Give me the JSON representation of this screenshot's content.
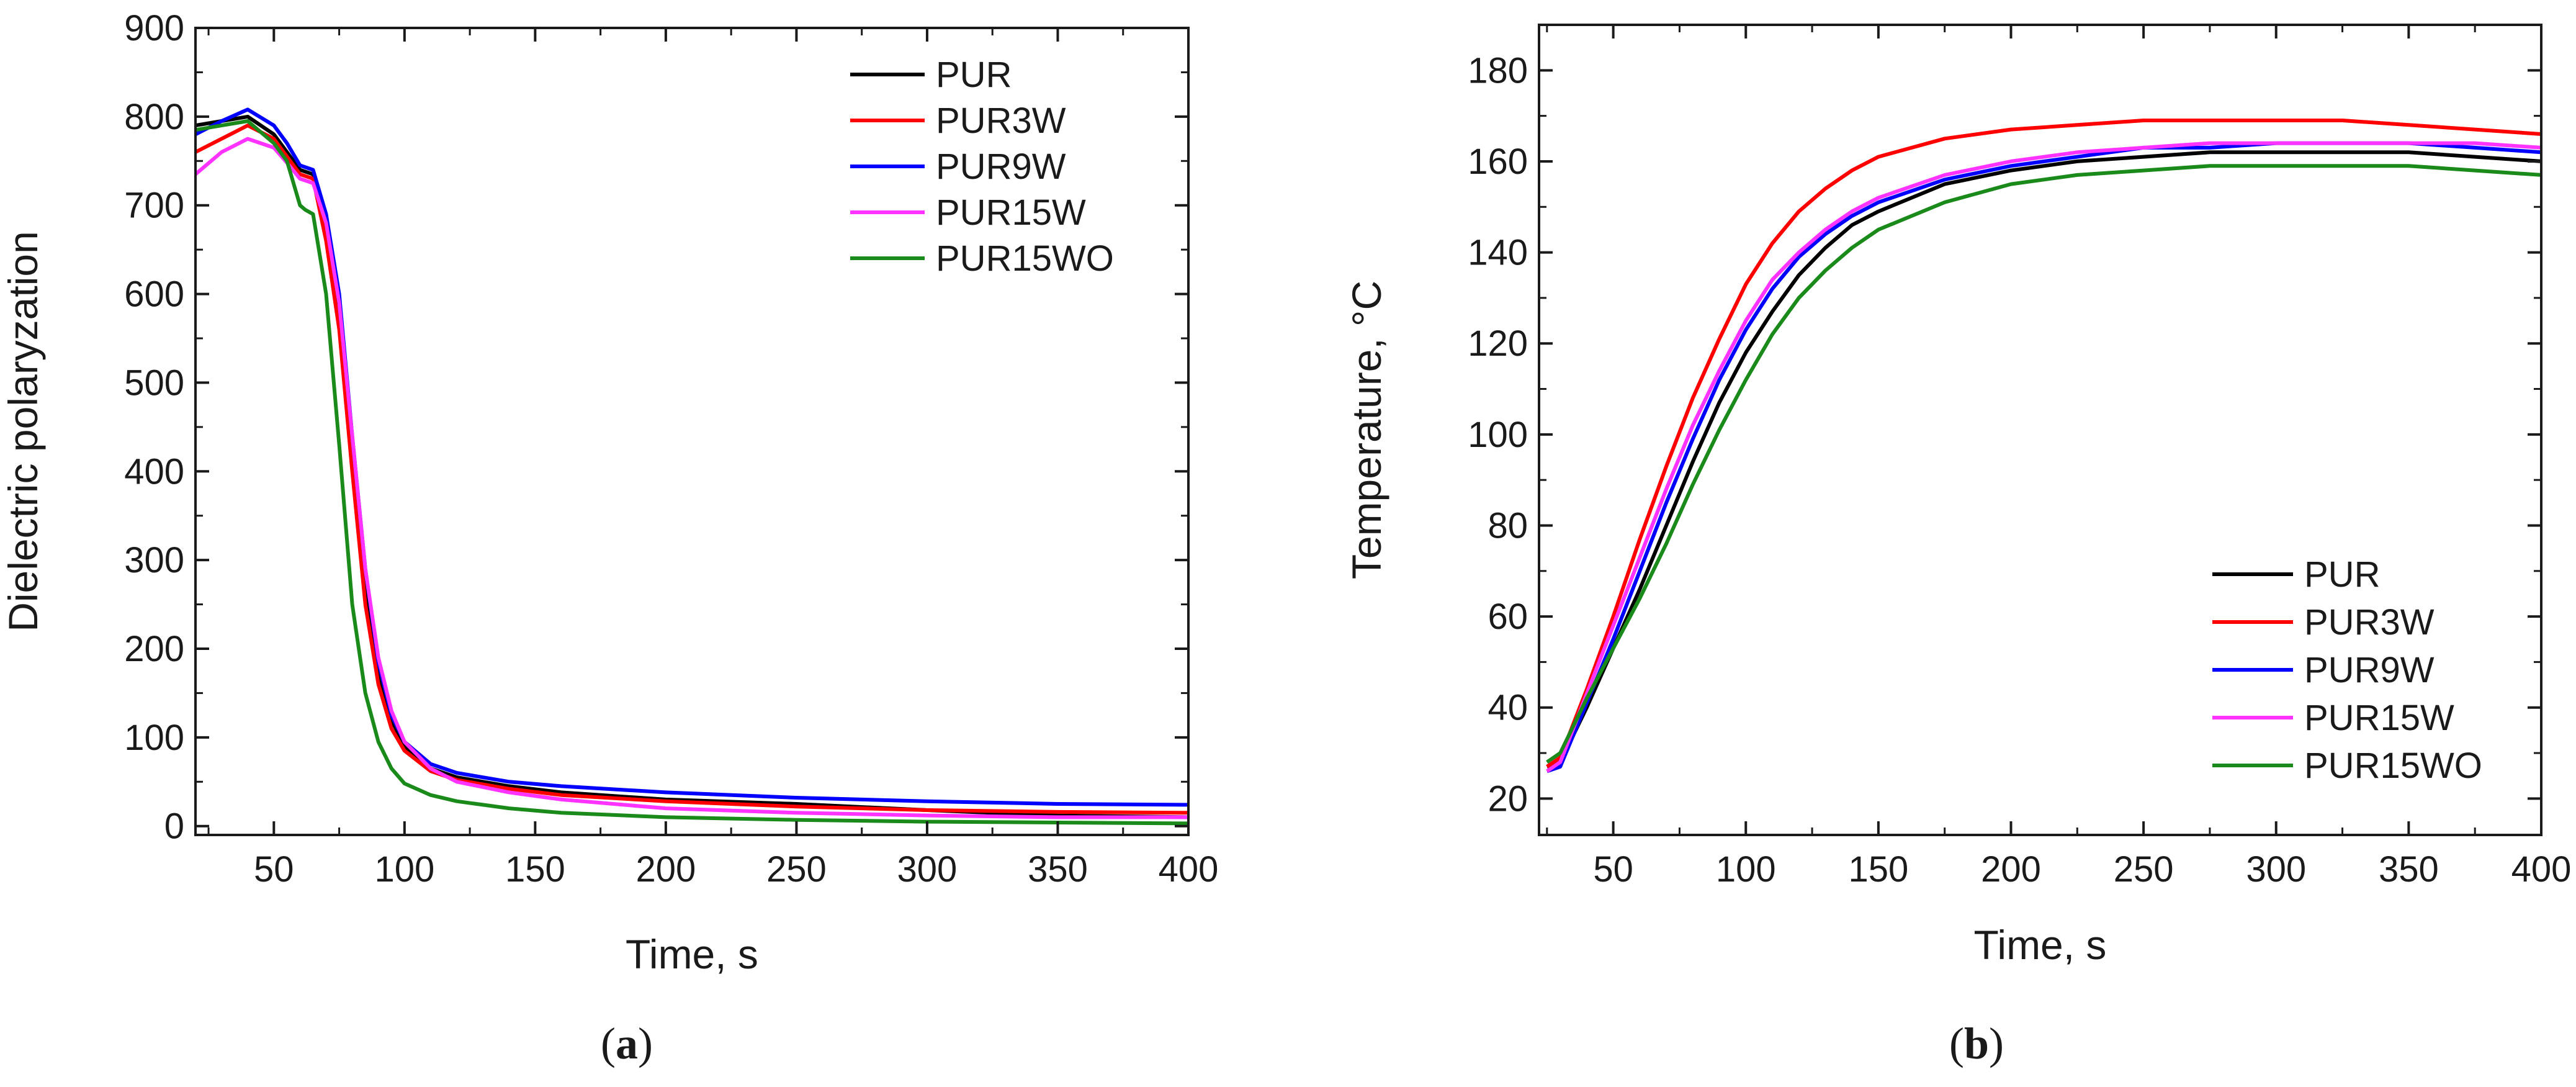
{
  "chart_data": [
    {
      "panel_label": "a",
      "type": "line",
      "title": "",
      "xlabel": "Time, s",
      "ylabel": "Dielectric polaryzation",
      "xlim": [
        20,
        400
      ],
      "ylim": [
        -10,
        900
      ],
      "xticks": [
        50,
        100,
        150,
        200,
        250,
        300,
        350,
        400
      ],
      "yticks": [
        0,
        100,
        200,
        300,
        400,
        500,
        600,
        700,
        800,
        900
      ],
      "grid": false,
      "legend_position": "top-right",
      "series": [
        {
          "name": "PUR",
          "color": "#000000",
          "x": [
            20,
            30,
            40,
            50,
            55,
            60,
            65,
            70,
            75,
            80,
            85,
            90,
            95,
            100,
            110,
            120,
            140,
            160,
            200,
            250,
            300,
            350,
            400
          ],
          "y": [
            790,
            795,
            800,
            780,
            760,
            740,
            735,
            680,
            580,
            420,
            270,
            170,
            120,
            90,
            65,
            55,
            45,
            38,
            30,
            25,
            18,
            12,
            10
          ]
        },
        {
          "name": "PUR3W",
          "color": "#ff0000",
          "x": [
            20,
            30,
            40,
            50,
            55,
            60,
            65,
            70,
            75,
            80,
            85,
            90,
            95,
            100,
            110,
            120,
            140,
            160,
            200,
            250,
            300,
            350,
            400
          ],
          "y": [
            760,
            775,
            790,
            775,
            755,
            735,
            730,
            660,
            560,
            400,
            250,
            160,
            110,
            85,
            62,
            52,
            42,
            35,
            28,
            22,
            18,
            16,
            15
          ]
        },
        {
          "name": "PUR9W",
          "color": "#0000ff",
          "x": [
            20,
            30,
            40,
            50,
            55,
            60,
            65,
            70,
            75,
            80,
            85,
            90,
            95,
            100,
            110,
            120,
            140,
            160,
            200,
            250,
            300,
            350,
            400
          ],
          "y": [
            780,
            795,
            808,
            790,
            770,
            745,
            740,
            690,
            600,
            440,
            290,
            185,
            125,
            95,
            70,
            60,
            50,
            45,
            38,
            32,
            28,
            25,
            24
          ]
        },
        {
          "name": "PUR15W",
          "color": "#ff33ff",
          "x": [
            20,
            30,
            40,
            50,
            55,
            60,
            65,
            70,
            75,
            80,
            85,
            90,
            95,
            100,
            110,
            120,
            140,
            160,
            200,
            250,
            300,
            350,
            400
          ],
          "y": [
            735,
            760,
            775,
            765,
            748,
            730,
            725,
            680,
            590,
            440,
            290,
            190,
            130,
            95,
            65,
            50,
            38,
            30,
            20,
            15,
            12,
            10,
            10
          ]
        },
        {
          "name": "PUR15WO",
          "color": "#1a8a1a",
          "x": [
            20,
            30,
            40,
            50,
            55,
            60,
            62,
            65,
            70,
            75,
            80,
            85,
            90,
            95,
            100,
            110,
            120,
            140,
            160,
            200,
            250,
            300,
            350,
            400
          ],
          "y": [
            785,
            790,
            795,
            770,
            750,
            700,
            695,
            690,
            600,
            430,
            250,
            150,
            95,
            65,
            48,
            35,
            28,
            20,
            15,
            10,
            7,
            5,
            4,
            3
          ]
        }
      ]
    },
    {
      "panel_label": "b",
      "type": "line",
      "title": "",
      "xlabel": "Time, s",
      "ylabel": "Temperature, °C",
      "xlim": [
        22,
        400
      ],
      "ylim": [
        12,
        190
      ],
      "xticks": [
        50,
        100,
        150,
        200,
        250,
        300,
        350,
        400
      ],
      "yticks": [
        20,
        40,
        60,
        80,
        100,
        120,
        140,
        160,
        180
      ],
      "grid": false,
      "legend_position": "bottom-right",
      "series": [
        {
          "name": "PUR",
          "color": "#000000",
          "x": [
            25,
            30,
            40,
            50,
            60,
            70,
            80,
            90,
            100,
            110,
            120,
            130,
            140,
            150,
            175,
            200,
            225,
            250,
            275,
            300,
            325,
            350,
            375,
            400
          ],
          "y": [
            27,
            28,
            40,
            53,
            66,
            80,
            94,
            107,
            118,
            127,
            135,
            141,
            146,
            149,
            155,
            158,
            160,
            161,
            162,
            162,
            162,
            162,
            161,
            160
          ]
        },
        {
          "name": "PUR3W",
          "color": "#ff0000",
          "x": [
            25,
            30,
            40,
            50,
            60,
            70,
            80,
            90,
            100,
            110,
            120,
            130,
            140,
            150,
            175,
            200,
            225,
            250,
            275,
            300,
            325,
            350,
            375,
            400
          ],
          "y": [
            27,
            29,
            44,
            60,
            77,
            93,
            108,
            121,
            133,
            142,
            149,
            154,
            158,
            161,
            165,
            167,
            168,
            169,
            169,
            169,
            169,
            168,
            167,
            166
          ]
        },
        {
          "name": "PUR9W",
          "color": "#0000ff",
          "x": [
            25,
            30,
            40,
            50,
            60,
            70,
            80,
            90,
            100,
            110,
            120,
            130,
            140,
            150,
            175,
            200,
            225,
            250,
            275,
            300,
            325,
            350,
            375,
            400
          ],
          "y": [
            26,
            27,
            41,
            55,
            70,
            85,
            99,
            112,
            123,
            132,
            139,
            144,
            148,
            151,
            156,
            159,
            161,
            163,
            163,
            164,
            164,
            164,
            163,
            162
          ]
        },
        {
          "name": "PUR15W",
          "color": "#ff33ff",
          "x": [
            25,
            30,
            40,
            50,
            60,
            70,
            80,
            90,
            100,
            110,
            120,
            130,
            140,
            150,
            175,
            200,
            225,
            250,
            275,
            300,
            325,
            350,
            375,
            400
          ],
          "y": [
            26,
            28,
            43,
            58,
            73,
            88,
            102,
            114,
            125,
            134,
            140,
            145,
            149,
            152,
            157,
            160,
            162,
            163,
            164,
            164,
            164,
            164,
            164,
            163
          ]
        },
        {
          "name": "PUR15WO",
          "color": "#1a8a1a",
          "x": [
            25,
            30,
            40,
            50,
            60,
            70,
            80,
            90,
            100,
            110,
            120,
            130,
            140,
            150,
            175,
            200,
            225,
            250,
            275,
            300,
            325,
            350,
            375,
            400
          ],
          "y": [
            28,
            30,
            42,
            53,
            64,
            76,
            89,
            101,
            112,
            122,
            130,
            136,
            141,
            145,
            151,
            155,
            157,
            158,
            159,
            159,
            159,
            159,
            158,
            157
          ]
        }
      ]
    }
  ],
  "captions": [
    {
      "open": "(",
      "letter": "a",
      "close": ")"
    },
    {
      "open": "(",
      "letter": "b",
      "close": ")"
    }
  ]
}
